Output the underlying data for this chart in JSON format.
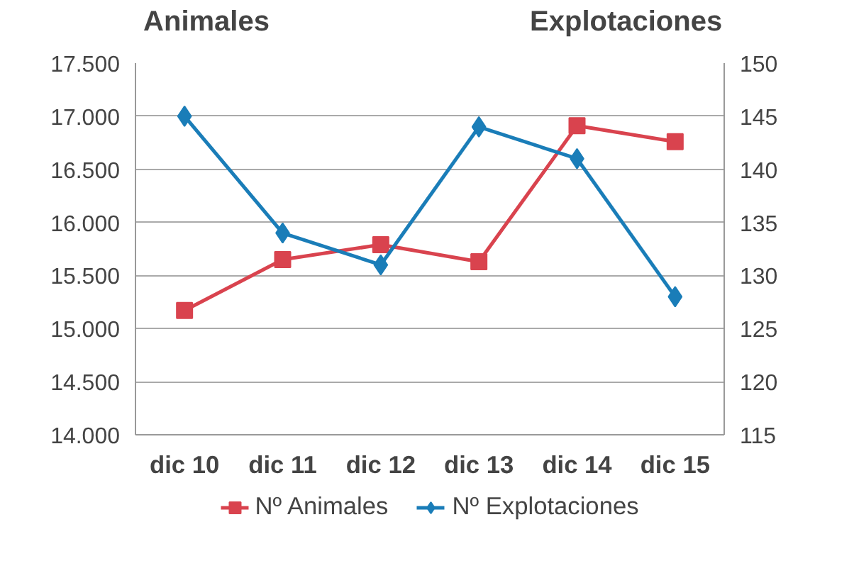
{
  "chart_data": {
    "type": "line",
    "ylabel": "Animales",
    "y2label": "Explotaciones",
    "categories": [
      "dic 10",
      "dic 11",
      "dic 12",
      "dic 13",
      "dic 14",
      "dic 15"
    ],
    "series": [
      {
        "name": "Nº Animales",
        "color": "#d9434e",
        "marker": "square",
        "values": [
          15170,
          15650,
          15790,
          15630,
          16910,
          16760
        ]
      },
      {
        "name": "Nº Explotaciones",
        "color": "#1a7db8",
        "marker": "diamond",
        "axis": "y2",
        "values": [
          145,
          134,
          131,
          144,
          141,
          128
        ]
      }
    ],
    "ylim": [
      14000,
      17500
    ],
    "yticks": [
      {
        "value": 14000,
        "label": "14.000"
      },
      {
        "value": 14500,
        "label": "14.500"
      },
      {
        "value": 15000,
        "label": "15.000"
      },
      {
        "value": 15500,
        "label": "15.500"
      },
      {
        "value": 16000,
        "label": "16.000"
      },
      {
        "value": 16500,
        "label": "16.500"
      },
      {
        "value": 17000,
        "label": "17.000"
      },
      {
        "value": 17500,
        "label": "17.500"
      }
    ],
    "y2lim": [
      115,
      150
    ],
    "y2ticks": [
      115,
      120,
      125,
      130,
      135,
      140,
      145,
      150
    ],
    "grid": "y",
    "legend": "bottom",
    "line_style": "solid"
  }
}
